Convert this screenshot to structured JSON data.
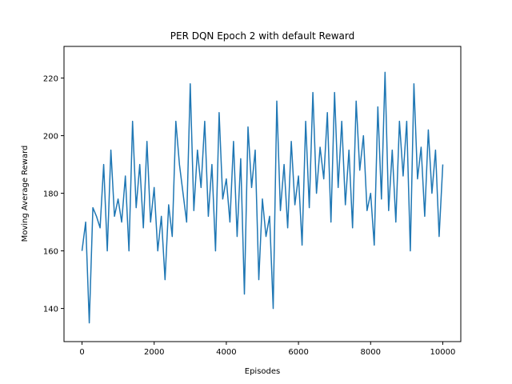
{
  "chart_data": {
    "type": "line",
    "title": "PER DQN Epoch 2 with default Reward",
    "xlabel": "Episodes",
    "ylabel": "Moving Average Reward",
    "xlim": [
      -500,
      10500
    ],
    "ylim": [
      128.5,
      231
    ],
    "x_ticks": [
      0,
      2000,
      4000,
      6000,
      8000,
      10000
    ],
    "y_ticks": [
      140,
      160,
      180,
      200,
      220
    ],
    "grid": false,
    "legend": "none",
    "series": [
      {
        "color": "#1f77b4",
        "x": [
          0,
          100,
          200,
          300,
          400,
          500,
          600,
          700,
          800,
          900,
          1000,
          1100,
          1200,
          1300,
          1400,
          1500,
          1600,
          1700,
          1800,
          1900,
          2000,
          2100,
          2200,
          2300,
          2400,
          2500,
          2600,
          2700,
          2800,
          2900,
          3000,
          3100,
          3200,
          3300,
          3400,
          3500,
          3600,
          3700,
          3800,
          3900,
          4000,
          4100,
          4200,
          4300,
          4400,
          4500,
          4600,
          4700,
          4800,
          4900,
          5000,
          5100,
          5200,
          5300,
          5400,
          5500,
          5600,
          5700,
          5800,
          5900,
          6000,
          6100,
          6200,
          6300,
          6400,
          6500,
          6600,
          6700,
          6800,
          6900,
          7000,
          7100,
          7200,
          7300,
          7400,
          7500,
          7600,
          7700,
          7800,
          7900,
          8000,
          8100,
          8200,
          8300,
          8400,
          8500,
          8600,
          8700,
          8800,
          8900,
          9000,
          9100,
          9200,
          9300,
          9400,
          9500,
          9600,
          9700,
          9800,
          9900,
          10000
        ],
        "y": [
          160,
          170,
          135,
          175,
          172,
          168,
          190,
          160,
          195,
          172,
          178,
          170,
          186,
          160,
          205,
          175,
          190,
          168,
          198,
          170,
          182,
          160,
          172,
          150,
          176,
          165,
          205,
          190,
          180,
          170,
          218,
          174,
          195,
          182,
          205,
          172,
          190,
          160,
          208,
          178,
          185,
          170,
          198,
          165,
          192,
          145,
          203,
          182,
          195,
          150,
          178,
          165,
          172,
          140,
          212,
          174,
          190,
          168,
          198,
          176,
          186,
          162,
          205,
          175,
          215,
          180,
          196,
          185,
          208,
          170,
          215,
          182,
          205,
          176,
          195,
          168,
          212,
          188,
          200,
          174,
          180,
          162,
          210,
          178,
          222,
          174,
          195,
          170,
          205,
          186,
          205,
          160,
          218,
          185,
          196,
          172,
          202,
          180,
          195,
          165,
          190
        ]
      }
    ]
  }
}
